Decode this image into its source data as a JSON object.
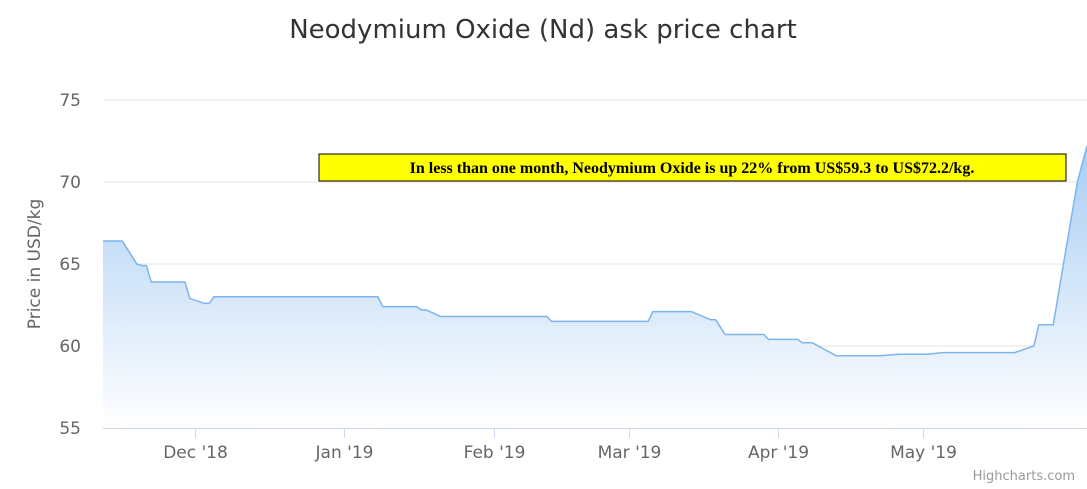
{
  "chart_data": {
    "type": "area",
    "title": "Neodymium Oxide (Nd) ask price chart",
    "ylabel": "Price in USD/kg",
    "ylim": [
      55,
      75
    ],
    "y_ticks": [
      "55",
      "60",
      "65",
      "70",
      "75"
    ],
    "x_ticks": [
      {
        "label": "Dec '18",
        "date": "2018-12-01"
      },
      {
        "label": "Jan '19",
        "date": "2019-01-01"
      },
      {
        "label": "Feb '19",
        "date": "2019-02-01"
      },
      {
        "label": "Mar '19",
        "date": "2019-03-01"
      },
      {
        "label": "Apr '19",
        "date": "2019-04-01"
      },
      {
        "label": "May '19",
        "date": "2019-05-01"
      }
    ],
    "x_range": [
      "2018-11-12",
      "2019-06-04"
    ],
    "grid": true,
    "legend": "none",
    "colors": {
      "line": "#7cb5ec",
      "fill_top": "#a9cdf3",
      "fill_bottom": "#ffffff",
      "grid": "#e6e6e6"
    },
    "series": [
      {
        "points": [
          [
            "2018-11-12",
            66.4
          ],
          [
            "2018-11-16",
            66.4
          ],
          [
            "2018-11-19",
            65.0
          ],
          [
            "2018-11-20",
            64.9
          ],
          [
            "2018-11-21",
            64.9
          ],
          [
            "2018-11-22",
            63.9
          ],
          [
            "2018-11-29",
            63.9
          ],
          [
            "2018-11-30",
            62.9
          ],
          [
            "2018-12-01",
            62.8
          ],
          [
            "2018-12-03",
            62.6
          ],
          [
            "2018-12-04",
            62.6
          ],
          [
            "2018-12-05",
            63.0
          ],
          [
            "2019-01-08",
            63.0
          ],
          [
            "2019-01-09",
            62.4
          ],
          [
            "2019-01-16",
            62.4
          ],
          [
            "2019-01-17",
            62.2
          ],
          [
            "2019-01-18",
            62.2
          ],
          [
            "2019-01-21",
            61.8
          ],
          [
            "2019-02-12",
            61.8
          ],
          [
            "2019-02-13",
            61.5
          ],
          [
            "2019-03-05",
            61.5
          ],
          [
            "2019-03-06",
            62.1
          ],
          [
            "2019-03-14",
            62.1
          ],
          [
            "2019-03-18",
            61.6
          ],
          [
            "2019-03-19",
            61.6
          ],
          [
            "2019-03-21",
            60.7
          ],
          [
            "2019-03-29",
            60.7
          ],
          [
            "2019-03-30",
            60.4
          ],
          [
            "2019-04-05",
            60.4
          ],
          [
            "2019-04-06",
            60.2
          ],
          [
            "2019-04-08",
            60.2
          ],
          [
            "2019-04-13",
            59.4
          ],
          [
            "2019-04-22",
            59.4
          ],
          [
            "2019-04-26",
            59.5
          ],
          [
            "2019-05-02",
            59.5
          ],
          [
            "2019-05-05",
            59.6
          ],
          [
            "2019-05-20",
            59.6
          ],
          [
            "2019-05-24",
            60.0
          ],
          [
            "2019-05-25",
            61.3
          ],
          [
            "2019-05-28",
            61.3
          ],
          [
            "2019-06-02",
            70.0
          ],
          [
            "2019-06-04",
            72.2
          ]
        ]
      }
    ],
    "annotation": {
      "text": "In less than one month, Neodymium Oxide is up 22% from US$59.3 to US$72.2/kg.",
      "background": "#ffff00",
      "border": "#000000"
    },
    "credit": "Highcharts.com"
  }
}
